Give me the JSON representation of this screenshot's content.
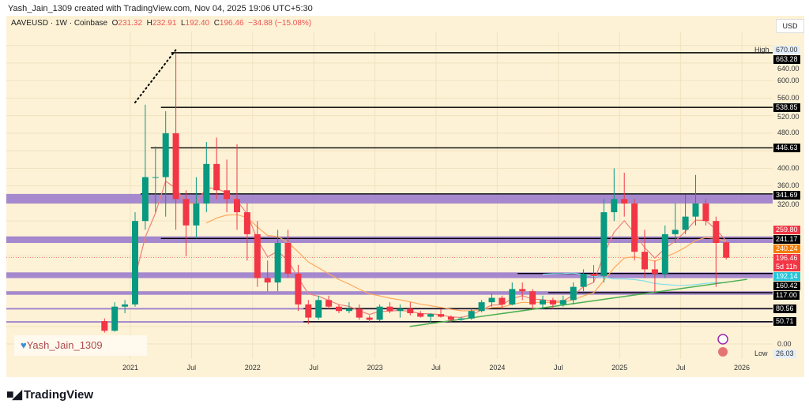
{
  "header": {
    "credit": "Yash_Jain_1309 created with TradingView.com, Nov 04, 2025 19:06 UTC+5:30",
    "symbol": "AAVEUSD · 1W · Coinbase",
    "o_label": "O",
    "o": "231.32",
    "h_label": "H",
    "h": "232.91",
    "l_label": "L",
    "l": "192.40",
    "c_label": "C",
    "c": "196.46",
    "change": "−34.88 (−15.08%)"
  },
  "currency": "USD",
  "watermark": "Yash_Jain_1309",
  "brand": "TradingView",
  "colors": {
    "up": "#089981",
    "down": "#f23645",
    "band": "#9575cd",
    "ma_fast": "#f0807a",
    "ma_mid": "#ffa95c",
    "ma_slow": "#80deea",
    "trend": "#4caf50",
    "bg": "#fdf2d6"
  },
  "chart_data": {
    "type": "candlestick",
    "symbol": "AAVEUSD",
    "interval": "1W",
    "ylim": [
      0,
      670
    ],
    "y_ticks": [
      "670.00",
      "640.00",
      "600.00",
      "560.00",
      "520.00",
      "480.00",
      "400.00",
      "360.00",
      "320.00",
      "0.00"
    ],
    "x_ticks": [
      {
        "label": "2021",
        "date": "2021-01"
      },
      {
        "label": "Jul",
        "date": "2021-07"
      },
      {
        "label": "2022",
        "date": "2022-01"
      },
      {
        "label": "Jul",
        "date": "2022-07"
      },
      {
        "label": "2023",
        "date": "2023-01"
      },
      {
        "label": "Jul",
        "date": "2023-07"
      },
      {
        "label": "2024",
        "date": "2024-01"
      },
      {
        "label": "Jul",
        "date": "2024-07"
      },
      {
        "label": "2025",
        "date": "2025-01"
      },
      {
        "label": "Jul",
        "date": "2025-07"
      },
      {
        "label": "2026",
        "date": "2026-01"
      }
    ],
    "high_label": "High",
    "high": "670.00",
    "low_label": "Low",
    "low": "26.03",
    "candles": [
      [
        "2020-10",
        52,
        58,
        26,
        30
      ],
      [
        "2020-11",
        30,
        95,
        28,
        85
      ],
      [
        "2020-12",
        85,
        100,
        70,
        90
      ],
      [
        "2021-01",
        90,
        300,
        85,
        280
      ],
      [
        "2021-02",
        280,
        545,
        260,
        380
      ],
      [
        "2021-03",
        380,
        450,
        300,
        380
      ],
      [
        "2021-04",
        380,
        530,
        290,
        480
      ],
      [
        "2021-05",
        480,
        663,
        260,
        330
      ],
      [
        "2021-06",
        330,
        350,
        200,
        270
      ],
      [
        "2021-07",
        270,
        380,
        240,
        320
      ],
      [
        "2021-08",
        320,
        460,
        300,
        410
      ],
      [
        "2021-09",
        410,
        470,
        330,
        350
      ],
      [
        "2021-10",
        350,
        420,
        300,
        330
      ],
      [
        "2021-11",
        330,
        455,
        260,
        300
      ],
      [
        "2021-12",
        300,
        320,
        190,
        250
      ],
      [
        "2022-01",
        250,
        280,
        130,
        150
      ],
      [
        "2022-02",
        150,
        190,
        120,
        140
      ],
      [
        "2022-03",
        140,
        260,
        120,
        230
      ],
      [
        "2022-04",
        230,
        260,
        150,
        160
      ],
      [
        "2022-05",
        160,
        180,
        75,
        90
      ],
      [
        "2022-06",
        90,
        100,
        45,
        60
      ],
      [
        "2022-07",
        60,
        110,
        55,
        100
      ],
      [
        "2022-08",
        100,
        110,
        80,
        85
      ],
      [
        "2022-09",
        85,
        90,
        70,
        75
      ],
      [
        "2022-10",
        75,
        95,
        70,
        80
      ],
      [
        "2022-11",
        80,
        90,
        55,
        60
      ],
      [
        "2022-12",
        60,
        65,
        50,
        55
      ],
      [
        "2023-01",
        55,
        90,
        52,
        85
      ],
      [
        "2023-02",
        85,
        95,
        70,
        75
      ],
      [
        "2023-03",
        75,
        90,
        60,
        80
      ],
      [
        "2023-04",
        80,
        95,
        65,
        70
      ],
      [
        "2023-05",
        70,
        75,
        60,
        62
      ],
      [
        "2023-06",
        62,
        70,
        50,
        68
      ],
      [
        "2023-07",
        68,
        80,
        60,
        62
      ],
      [
        "2023-08",
        62,
        65,
        50,
        55
      ],
      [
        "2023-09",
        55,
        62,
        50,
        58
      ],
      [
        "2023-10",
        58,
        80,
        55,
        75
      ],
      [
        "2023-11",
        75,
        100,
        72,
        95
      ],
      [
        "2023-12",
        95,
        115,
        85,
        105
      ],
      [
        "2024-01",
        105,
        110,
        80,
        90
      ],
      [
        "2024-02",
        90,
        140,
        88,
        125
      ],
      [
        "2024-03",
        125,
        140,
        100,
        120
      ],
      [
        "2024-04",
        120,
        125,
        80,
        90
      ],
      [
        "2024-05",
        90,
        110,
        80,
        100
      ],
      [
        "2024-06",
        100,
        105,
        80,
        90
      ],
      [
        "2024-07",
        90,
        110,
        85,
        100
      ],
      [
        "2024-08",
        100,
        140,
        90,
        130
      ],
      [
        "2024-09",
        130,
        170,
        120,
        160
      ],
      [
        "2024-10",
        160,
        180,
        140,
        155
      ],
      [
        "2024-11",
        155,
        330,
        140,
        300
      ],
      [
        "2024-12",
        300,
        400,
        280,
        330
      ],
      [
        "2025-01",
        330,
        390,
        290,
        320
      ],
      [
        "2025-02",
        320,
        330,
        190,
        210
      ],
      [
        "2025-03",
        210,
        260,
        150,
        170
      ],
      [
        "2025-04",
        170,
        190,
        118,
        160
      ],
      [
        "2025-05",
        160,
        270,
        150,
        250
      ],
      [
        "2025-06",
        250,
        320,
        230,
        260
      ],
      [
        "2025-07",
        260,
        340,
        250,
        290
      ],
      [
        "2025-08",
        290,
        385,
        270,
        320
      ],
      [
        "2025-09",
        320,
        330,
        270,
        280
      ],
      [
        "2025-10",
        280,
        290,
        130,
        230
      ],
      [
        "2025-11",
        231.32,
        232.91,
        192.4,
        196.46
      ]
    ],
    "levels": [
      {
        "label": "663.28",
        "value": 663.28,
        "from": "2021-05",
        "color": "#000000"
      },
      {
        "label": "538.85",
        "value": 538.85,
        "from": "2021-04",
        "color": "#000000"
      },
      {
        "label": "446.63",
        "value": 446.63,
        "from": "2021-03",
        "color": "#000000"
      },
      {
        "label": "341.69",
        "value": 341.69,
        "from": "2021-02",
        "color": "#000000"
      },
      {
        "label": "240.24",
        "value": 240.24,
        "from": "2021-04",
        "color": "#000000"
      },
      {
        "label": "160.42",
        "value": 160.42,
        "from": "2024-03",
        "color": "#000000"
      },
      {
        "label": "117.00",
        "value": 117.0,
        "from": "2024-06",
        "color": "#000000"
      },
      {
        "label": "80.56",
        "value": 80.56,
        "from": "2022-06",
        "color": "#000000"
      },
      {
        "label": "50.71",
        "value": 50.71,
        "from": "2022-06",
        "color": "#000000"
      }
    ],
    "zones": [
      [
        320,
        341.69
      ],
      [
        230,
        245
      ],
      [
        150,
        163
      ],
      [
        112,
        120
      ],
      [
        79,
        82
      ],
      [
        49,
        52
      ]
    ],
    "price_tags": [
      {
        "label": "259.80",
        "value": 259.8,
        "color": "#f23645"
      },
      {
        "label": "241.17",
        "value": 241.17,
        "color": "#000000"
      },
      {
        "label": "240.24",
        "value": 240.24,
        "color": "#f57c00"
      },
      {
        "label": "196.46",
        "value": 196.46,
        "color": "#f23645",
        "sub": "5d 11h"
      },
      {
        "label": "192.14",
        "value": 192.14,
        "color": "#26c6da"
      },
      {
        "label": "160.42",
        "value": 160.42,
        "color": "#000000"
      },
      {
        "label": "117.00",
        "value": 117.0,
        "color": "#000000"
      },
      {
        "label": "80.56",
        "value": 80.56,
        "color": "#000000"
      },
      {
        "label": "50.71",
        "value": 50.71,
        "color": "#000000"
      }
    ],
    "trendlines": [
      {
        "from": [
          "2023-04",
          40
        ],
        "to": [
          "2026-01",
          147
        ],
        "color": "#4caf50",
        "style": "solid"
      },
      {
        "from": [
          "2021-01",
          550
        ],
        "to": [
          "2021-05",
          670
        ],
        "color": "#000000",
        "style": "dotted"
      }
    ],
    "current_price": 196.46
  }
}
